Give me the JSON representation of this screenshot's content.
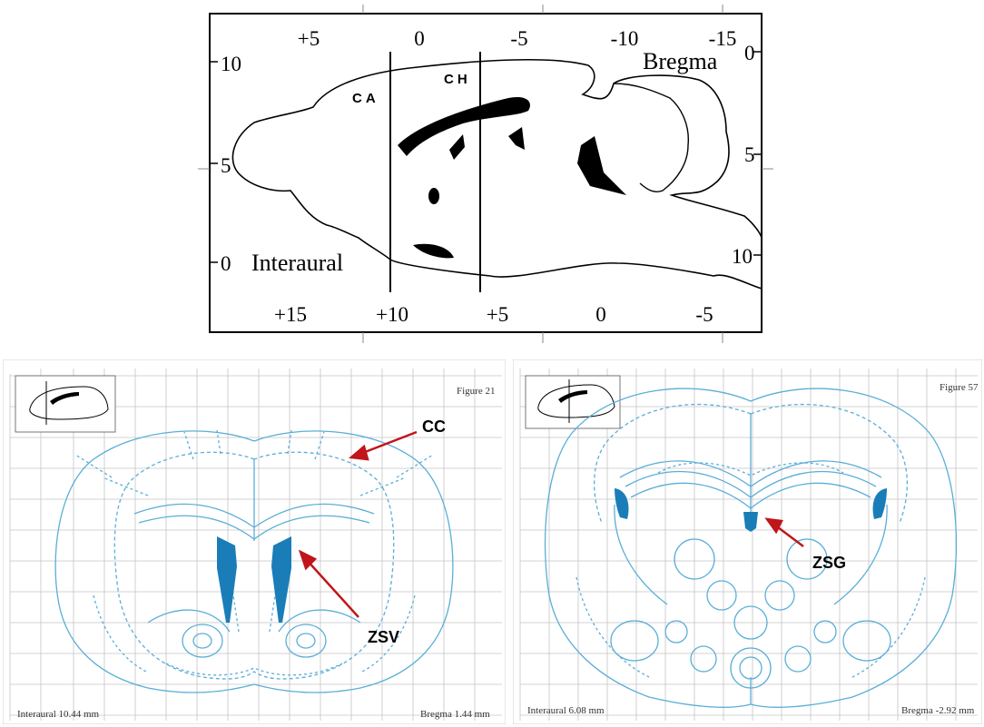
{
  "sagittal": {
    "top_ticks": [
      "+5",
      "0",
      "-5",
      "-10",
      "-15"
    ],
    "bottom_ticks": [
      "+15",
      "+10",
      "+5",
      "0",
      "-5"
    ],
    "left_ticks": [
      "10",
      "5",
      "0"
    ],
    "right_ticks": [
      "0",
      "5",
      "10"
    ],
    "bregma_label": "Bregma",
    "interaural_label": "Interaural",
    "cut_labels": [
      "CA",
      "CH"
    ]
  },
  "left_section": {
    "figure_label": "Figure 21",
    "interaural": "Interaural 10.44 mm",
    "bregma": "Bregma 1.44 mm",
    "arrow_labels": [
      "CC",
      "ZSV"
    ],
    "highlight_color": "#1a7db8",
    "line_color": "#5aaed8",
    "arrow_color": "#c0151b"
  },
  "right_section": {
    "figure_label": "Figure 57",
    "interaural": "Interaural 6.08 mm",
    "bregma": "Bregma -2.92 mm",
    "arrow_labels": [
      "ZSG"
    ],
    "highlight_color": "#1a7db8"
  }
}
